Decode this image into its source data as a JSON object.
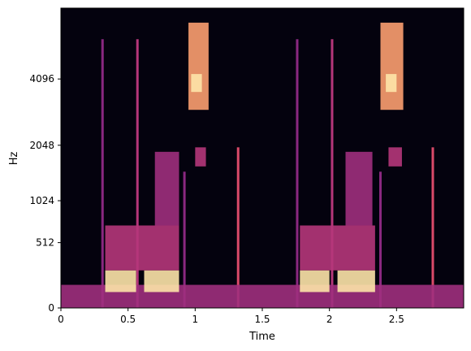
{
  "chart_data": {
    "type": "heatmap",
    "title": "",
    "xlabel": "Time",
    "ylabel": "Hz",
    "xlim": [
      0,
      3.0
    ],
    "y_scale": "mel",
    "ylim": [
      0,
      8000
    ],
    "x_ticks": [
      {
        "value": 0,
        "label": "0"
      },
      {
        "value": 0.5,
        "label": "0.5"
      },
      {
        "value": 1,
        "label": "1"
      },
      {
        "value": 1.5,
        "label": "1.5"
      },
      {
        "value": 2,
        "label": "2"
      },
      {
        "value": 2.5,
        "label": "2.5"
      }
    ],
    "y_ticks": [
      {
        "value": 0,
        "label": "0"
      },
      {
        "value": 512,
        "label": "512"
      },
      {
        "value": 1024,
        "label": "1024"
      },
      {
        "value": 2048,
        "label": "2048"
      },
      {
        "value": 4096,
        "label": "4096"
      }
    ],
    "colormap": "magma",
    "grid": false,
    "legend": "none",
    "energy_regions": [
      {
        "t": [
          0.0,
          3.0
        ],
        "f": [
          0,
          150
        ],
        "intensity": 0.45
      },
      {
        "t": [
          0.33,
          0.56
        ],
        "f": [
          100,
          260
        ],
        "intensity": 0.95
      },
      {
        "t": [
          0.62,
          0.88
        ],
        "f": [
          100,
          260
        ],
        "intensity": 0.95
      },
      {
        "t": [
          0.33,
          0.88
        ],
        "f": [
          260,
          700
        ],
        "intensity": 0.5
      },
      {
        "t": [
          0.7,
          0.88
        ],
        "f": [
          700,
          1900
        ],
        "intensity": 0.45
      },
      {
        "t": [
          0.95,
          1.1
        ],
        "f": [
          3000,
          7000
        ],
        "intensity": 0.8
      },
      {
        "t": [
          0.97,
          1.05
        ],
        "f": [
          3600,
          4300
        ],
        "intensity": 0.95
      },
      {
        "t": [
          1.0,
          1.08
        ],
        "f": [
          1600,
          2000
        ],
        "intensity": 0.5
      },
      {
        "t": [
          1.78,
          2.0
        ],
        "f": [
          100,
          260
        ],
        "intensity": 0.95
      },
      {
        "t": [
          2.06,
          2.34
        ],
        "f": [
          100,
          260
        ],
        "intensity": 0.95
      },
      {
        "t": [
          1.78,
          2.34
        ],
        "f": [
          260,
          700
        ],
        "intensity": 0.5
      },
      {
        "t": [
          2.12,
          2.32
        ],
        "f": [
          700,
          1900
        ],
        "intensity": 0.45
      },
      {
        "t": [
          2.38,
          2.55
        ],
        "f": [
          3000,
          7000
        ],
        "intensity": 0.8
      },
      {
        "t": [
          2.42,
          2.5
        ],
        "f": [
          3600,
          4300
        ],
        "intensity": 0.95
      },
      {
        "t": [
          2.44,
          2.54
        ],
        "f": [
          1600,
          2000
        ],
        "intensity": 0.5
      }
    ],
    "transient_lines": [
      {
        "t": 0.31,
        "f": [
          0,
          6000
        ],
        "intensity": 0.4
      },
      {
        "t": 0.57,
        "f": [
          0,
          6000
        ],
        "intensity": 0.5
      },
      {
        "t": 0.92,
        "f": [
          0,
          1500
        ],
        "intensity": 0.4
      },
      {
        "t": 1.32,
        "f": [
          0,
          2000
        ],
        "intensity": 0.6
      },
      {
        "t": 1.76,
        "f": [
          0,
          6000
        ],
        "intensity": 0.4
      },
      {
        "t": 2.02,
        "f": [
          0,
          6000
        ],
        "intensity": 0.5
      },
      {
        "t": 2.38,
        "f": [
          0,
          1500
        ],
        "intensity": 0.4
      },
      {
        "t": 2.77,
        "f": [
          0,
          2000
        ],
        "intensity": 0.6
      }
    ]
  }
}
